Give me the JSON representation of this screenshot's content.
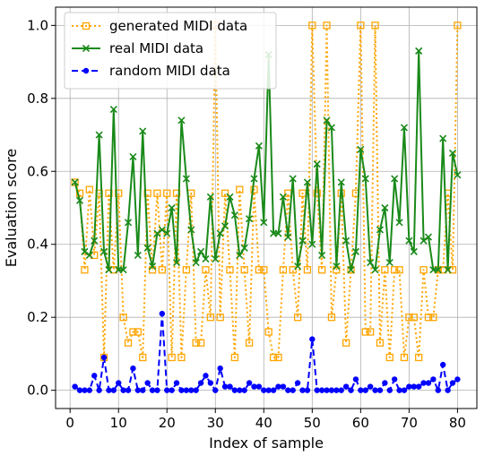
{
  "chart_data": {
    "type": "line",
    "xlabel": "Index of sample",
    "ylabel": "Evaluation score",
    "xlim": [
      -3,
      84
    ],
    "ylim": [
      -0.05,
      1.05
    ],
    "xticks": [
      0,
      10,
      20,
      30,
      40,
      50,
      60,
      70,
      80
    ],
    "yticks": [
      0.0,
      0.2,
      0.4,
      0.6,
      0.8,
      1.0
    ],
    "xtick_labels": [
      "0",
      "10",
      "20",
      "30",
      "40",
      "50",
      "60",
      "70",
      "80"
    ],
    "ytick_labels": [
      "0.0",
      "0.2",
      "0.4",
      "0.6",
      "0.8",
      "1.0"
    ],
    "grid": true,
    "legend_position": "top-left",
    "x": [
      1,
      2,
      3,
      4,
      5,
      6,
      7,
      8,
      9,
      10,
      11,
      12,
      13,
      14,
      15,
      16,
      17,
      18,
      19,
      20,
      21,
      22,
      23,
      24,
      25,
      26,
      27,
      28,
      29,
      30,
      31,
      32,
      33,
      34,
      35,
      36,
      37,
      38,
      39,
      40,
      41,
      42,
      43,
      44,
      45,
      46,
      47,
      48,
      49,
      50,
      51,
      52,
      53,
      54,
      55,
      56,
      57,
      58,
      59,
      60,
      61,
      62,
      63,
      64,
      65,
      66,
      67,
      68,
      69,
      70,
      71,
      72,
      73,
      74,
      75,
      76,
      77,
      78,
      79,
      80
    ],
    "series": [
      {
        "name": "generated MIDI data",
        "color": "#ffa500",
        "style": "dotted",
        "marker": "square",
        "values": [
          0.57,
          0.54,
          0.33,
          0.55,
          0.37,
          0.54,
          0.09,
          0.54,
          0.33,
          0.54,
          0.2,
          0.13,
          0.16,
          0.16,
          0.09,
          0.54,
          0.33,
          0.54,
          0.33,
          0.54,
          0.09,
          0.54,
          0.09,
          0.33,
          0.54,
          0.13,
          0.13,
          0.33,
          0.2,
          1.0,
          0.2,
          0.54,
          0.33,
          0.09,
          0.55,
          0.33,
          0.13,
          0.55,
          0.33,
          0.33,
          0.16,
          0.09,
          0.09,
          0.33,
          0.54,
          0.33,
          0.2,
          0.54,
          0.33,
          1.0,
          0.54,
          0.33,
          1.0,
          0.2,
          0.33,
          0.54,
          0.13,
          0.33,
          0.54,
          1.0,
          0.16,
          0.16,
          1.0,
          0.13,
          0.33,
          0.09,
          0.33,
          0.33,
          0.09,
          0.2,
          0.2,
          0.09,
          0.33,
          0.2,
          0.2,
          0.33,
          0.33,
          0.54,
          0.33,
          1.0
        ]
      },
      {
        "name": "real MIDI data",
        "color": "#1a8a1a",
        "style": "solid",
        "marker": "x",
        "values": [
          0.57,
          0.52,
          0.38,
          0.37,
          0.41,
          0.7,
          0.38,
          0.33,
          0.77,
          0.33,
          0.33,
          0.46,
          0.64,
          0.37,
          0.71,
          0.39,
          0.34,
          0.43,
          0.44,
          0.43,
          0.5,
          0.35,
          0.74,
          0.58,
          0.44,
          0.35,
          0.38,
          0.36,
          0.53,
          0.36,
          0.43,
          0.45,
          0.53,
          0.48,
          0.37,
          0.39,
          0.47,
          0.58,
          0.67,
          0.46,
          0.92,
          0.43,
          0.43,
          0.53,
          0.42,
          0.58,
          0.34,
          0.41,
          0.57,
          0.4,
          0.62,
          0.37,
          0.74,
          0.72,
          0.34,
          0.57,
          0.41,
          0.33,
          0.38,
          0.66,
          0.58,
          0.35,
          0.33,
          0.44,
          0.5,
          0.35,
          0.58,
          0.46,
          0.72,
          0.41,
          0.38,
          0.93,
          0.41,
          0.42,
          0.33,
          0.33,
          0.69,
          0.33,
          0.65,
          0.59
        ]
      },
      {
        "name": "random MIDI data",
        "color": "#0000ff",
        "style": "dashed",
        "marker": "circle",
        "values": [
          0.01,
          0.0,
          0.0,
          0.0,
          0.04,
          0.0,
          0.09,
          0.0,
          0.0,
          0.02,
          0.0,
          0.0,
          0.06,
          0.0,
          0.0,
          0.02,
          0.0,
          0.0,
          0.21,
          0.0,
          0.0,
          0.02,
          0.0,
          0.0,
          0.0,
          0.0,
          0.02,
          0.04,
          0.02,
          0.0,
          0.06,
          0.01,
          0.01,
          0.0,
          0.0,
          0.0,
          0.02,
          0.01,
          0.01,
          0.0,
          0.0,
          0.0,
          0.01,
          0.01,
          0.0,
          0.0,
          0.02,
          0.0,
          0.0,
          0.14,
          0.0,
          0.0,
          0.0,
          0.0,
          0.0,
          0.0,
          0.01,
          0.0,
          0.03,
          0.0,
          0.0,
          0.01,
          0.0,
          0.0,
          0.02,
          0.0,
          0.03,
          0.0,
          0.0,
          0.01,
          0.01,
          0.01,
          0.02,
          0.02,
          0.03,
          0.0,
          0.07,
          0.0,
          0.02,
          0.03
        ]
      }
    ]
  }
}
